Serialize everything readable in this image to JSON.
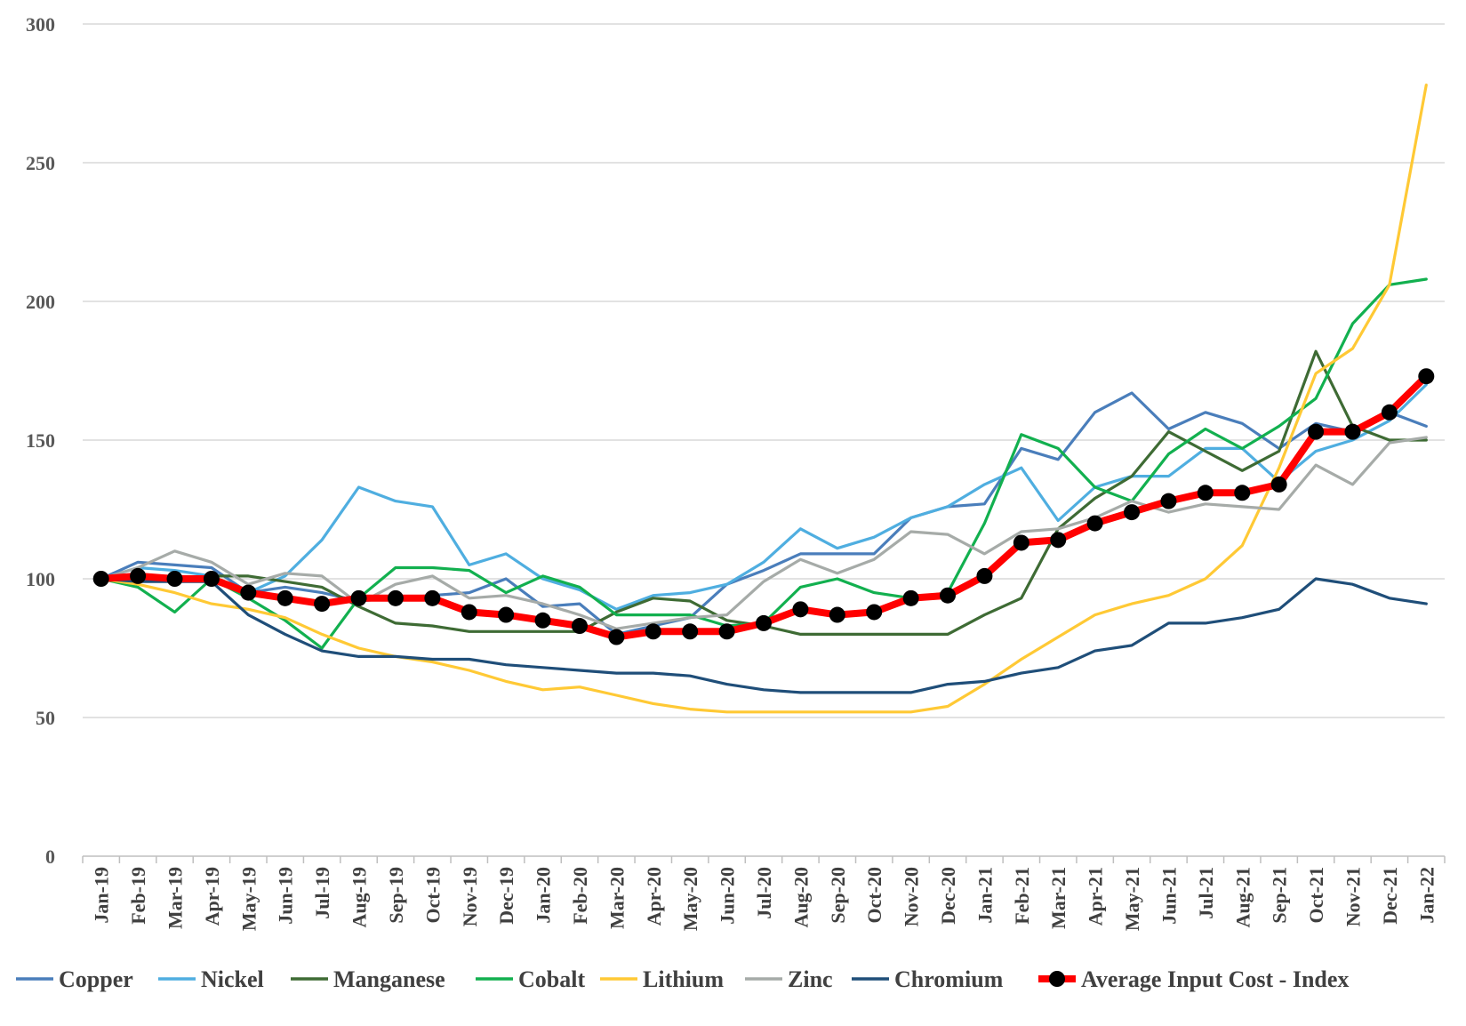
{
  "chart_data": {
    "type": "line",
    "title": "",
    "xlabel": "",
    "ylabel": "",
    "ylim": [
      0,
      300
    ],
    "yticks": [
      "0",
      "50",
      "100",
      "150",
      "200",
      "250",
      "300"
    ],
    "grid": true,
    "legend_position": "bottom",
    "categories": [
      "Jan-19",
      "Feb-19",
      "Mar-19",
      "Apr-19",
      "May-19",
      "Jun-19",
      "Jul-19",
      "Aug-19",
      "Sep-19",
      "Oct-19",
      "Nov-19",
      "Dec-19",
      "Jan-20",
      "Feb-20",
      "Mar-20",
      "Apr-20",
      "May-20",
      "Jun-20",
      "Jul-20",
      "Aug-20",
      "Sep-20",
      "Oct-20",
      "Nov-20",
      "Dec-20",
      "Jan-21",
      "Feb-21",
      "Mar-21",
      "Apr-21",
      "May-21",
      "Jun-21",
      "Jul-21",
      "Aug-21",
      "Sep-21",
      "Oct-21",
      "Nov-21",
      "Dec-21",
      "Jan-22"
    ],
    "series": [
      {
        "name": "Copper",
        "color": "#4A7EBB",
        "values": [
          100,
          106,
          105,
          104,
          95,
          97,
          95,
          92,
          93,
          94,
          95,
          100,
          90,
          91,
          80,
          83,
          86,
          98,
          103,
          109,
          109,
          109,
          122,
          126,
          127,
          147,
          143,
          160,
          167,
          154,
          160,
          156,
          147,
          156,
          153,
          160,
          155
        ]
      },
      {
        "name": "Nickel",
        "color": "#4FAEE0",
        "values": [
          100,
          104,
          103,
          101,
          95,
          101,
          114,
          133,
          128,
          126,
          105,
          109,
          100,
          96,
          89,
          94,
          95,
          98,
          106,
          118,
          111,
          115,
          122,
          126,
          134,
          140,
          121,
          133,
          137,
          137,
          147,
          147,
          135,
          146,
          150,
          157,
          170
        ]
      },
      {
        "name": "Manganese",
        "color": "#3E6B34",
        "values": [
          100,
          100,
          99,
          101,
          101,
          99,
          97,
          90,
          84,
          83,
          81,
          81,
          81,
          81,
          88,
          93,
          92,
          85,
          83,
          80,
          80,
          80,
          80,
          80,
          87,
          93,
          118,
          129,
          137,
          153,
          146,
          139,
          146,
          182,
          155,
          150,
          150
        ]
      },
      {
        "name": "Cobalt",
        "color": "#12B04F",
        "values": [
          100,
          97,
          88,
          100,
          93,
          85,
          75,
          93,
          104,
          104,
          103,
          95,
          101,
          97,
          87,
          87,
          87,
          83,
          84,
          97,
          100,
          95,
          93,
          95,
          120,
          152,
          147,
          133,
          128,
          145,
          154,
          147,
          155,
          165,
          192,
          206,
          208
        ]
      },
      {
        "name": "Lithium",
        "color": "#FFC935",
        "values": [
          100,
          98,
          95,
          91,
          89,
          86,
          80,
          75,
          72,
          70,
          67,
          63,
          60,
          61,
          58,
          55,
          53,
          52,
          52,
          52,
          52,
          52,
          52,
          54,
          62,
          71,
          79,
          87,
          91,
          94,
          100,
          112,
          140,
          174,
          183,
          206,
          278
        ]
      },
      {
        "name": "Zinc",
        "color": "#A6ABA8",
        "values": [
          100,
          104,
          110,
          106,
          98,
          102,
          101,
          91,
          98,
          101,
          93,
          94,
          91,
          87,
          82,
          84,
          86,
          87,
          99,
          107,
          102,
          107,
          117,
          116,
          109,
          117,
          118,
          122,
          128,
          124,
          127,
          126,
          125,
          141,
          134,
          149,
          151
        ]
      },
      {
        "name": "Chromium",
        "color": "#1F4E79",
        "values": [
          100,
          99,
          99,
          99,
          87,
          80,
          74,
          72,
          72,
          71,
          71,
          69,
          68,
          67,
          66,
          66,
          65,
          62,
          60,
          59,
          59,
          59,
          59,
          62,
          63,
          66,
          68,
          74,
          76,
          84,
          84,
          86,
          89,
          100,
          98,
          93,
          91
        ]
      },
      {
        "name": "Average Input Cost - Index",
        "color": "#FF0000",
        "marker": "#000000",
        "values": [
          100,
          101,
          100,
          100,
          95,
          93,
          91,
          93,
          93,
          93,
          88,
          87,
          85,
          83,
          79,
          81,
          81,
          81,
          84,
          89,
          87,
          88,
          93,
          94,
          101,
          113,
          114,
          120,
          124,
          128,
          131,
          131,
          134,
          153,
          153,
          160,
          173
        ]
      }
    ]
  }
}
